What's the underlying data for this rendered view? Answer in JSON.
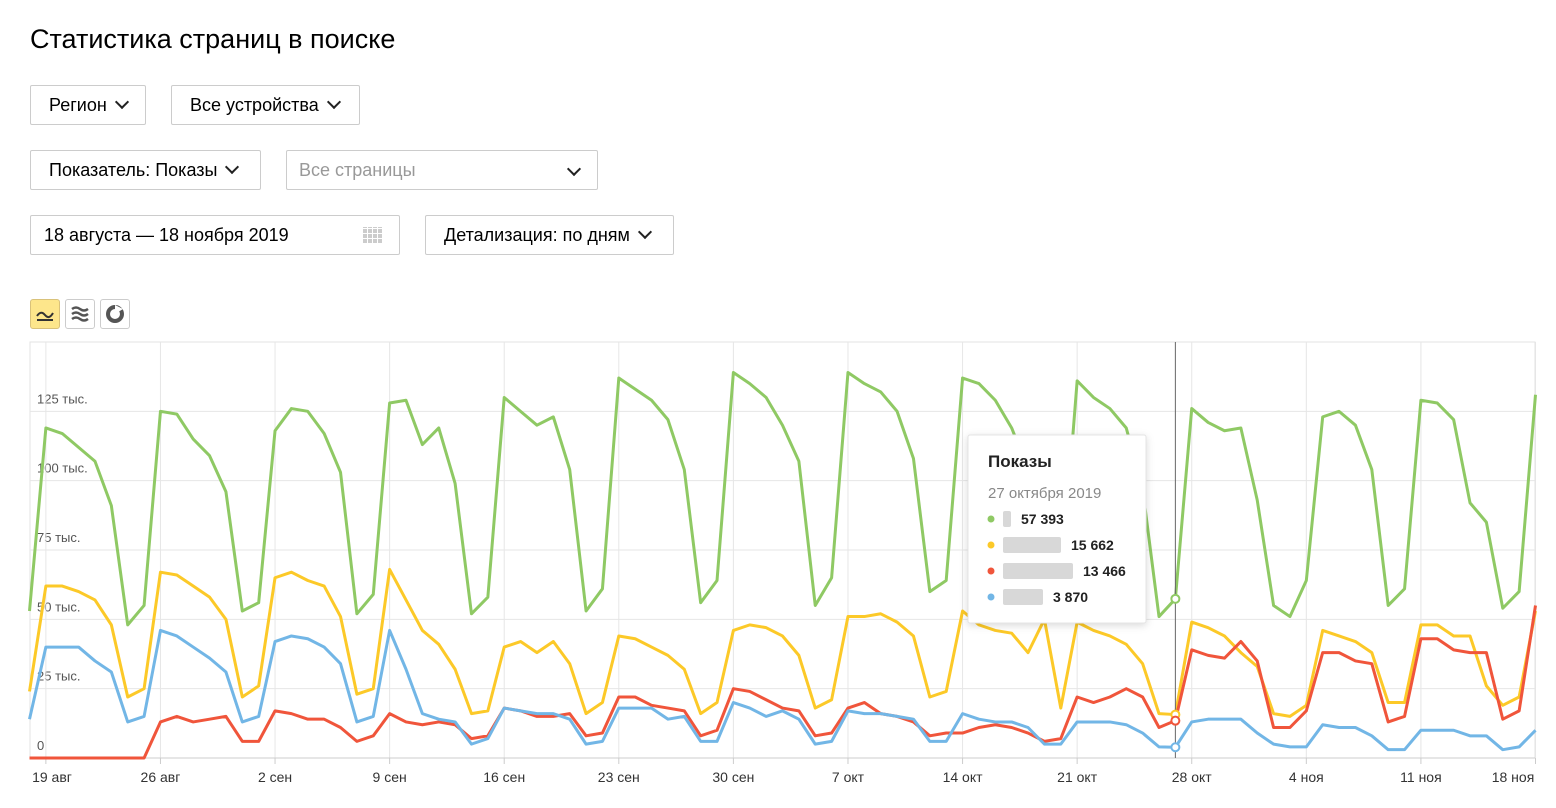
{
  "header": {
    "title": "Статистика страниц в поиске"
  },
  "controls": {
    "region": "Регион",
    "devices": "Все устройства",
    "metric": "Показатель: Показы",
    "pages": "Все страницы",
    "date_range": "18 августа — 18 ноября 2019",
    "detail": "Детализация: по дням"
  },
  "chart_data": {
    "type": "line",
    "categories": [
      null,
      "19 авг",
      null,
      null,
      null,
      null,
      null,
      null,
      "26 авг",
      null,
      null,
      null,
      null,
      null,
      null,
      "2 сен",
      null,
      null,
      null,
      null,
      null,
      null,
      "9 сен",
      null,
      null,
      null,
      null,
      null,
      null,
      "16 сен",
      null,
      null,
      null,
      null,
      null,
      null,
      "23 сен",
      null,
      null,
      null,
      null,
      null,
      null,
      "30 сен",
      null,
      null,
      null,
      null,
      null,
      null,
      "7 окт",
      null,
      null,
      null,
      null,
      null,
      null,
      "14 окт",
      null,
      null,
      null,
      null,
      null,
      null,
      "21 окт",
      null,
      null,
      null,
      null,
      null,
      null,
      "28 окт",
      null,
      null,
      null,
      null,
      null,
      null,
      "4 ноя",
      null,
      null,
      null,
      null,
      null,
      null,
      "11 ноя",
      null,
      null,
      null,
      null,
      null,
      null,
      "18 ноя"
    ],
    "ylim": [
      0,
      150000
    ],
    "yticks": [
      0,
      {
        "value": 25000,
        "label": "25 тыс."
      },
      {
        "value": 50000,
        "label": "50 тыс."
      },
      {
        "value": 75000,
        "label": "75 тыс."
      },
      {
        "value": 100000,
        "label": "100 тыс."
      },
      {
        "value": 125000,
        "label": "125 тыс."
      }
    ],
    "grid": true,
    "tooltip": {
      "title": "Показы",
      "date": "27 октября 2019"
    },
    "series": [
      {
        "color": "#8fc964",
        "values": [
          53000,
          119000,
          117000,
          112000,
          107000,
          91000,
          48000,
          55000,
          125000,
          124000,
          115000,
          109000,
          96000,
          53000,
          56000,
          118000,
          126000,
          125000,
          117000,
          103000,
          52000,
          59000,
          128000,
          129000,
          113000,
          119000,
          99000,
          52000,
          58000,
          130000,
          125000,
          120000,
          123000,
          104000,
          53000,
          61000,
          137000,
          133000,
          129000,
          122000,
          104000,
          56000,
          64000,
          139000,
          135000,
          130000,
          120000,
          107000,
          55000,
          65000,
          139000,
          135000,
          132000,
          125000,
          108000,
          60000,
          64000,
          137000,
          135000,
          129000,
          119000,
          104000,
          57000,
          61000,
          136000,
          130000,
          126000,
          119000,
          97000,
          51000,
          57393,
          126000,
          121000,
          118000,
          119000,
          93000,
          55000,
          51000,
          64000,
          123000,
          125000,
          120000,
          104000,
          55000,
          61000,
          129000,
          128000,
          122000,
          92000,
          85000,
          54000,
          60000,
          131000
        ],
        "value_labels": [
          null,
          null,
          null,
          null,
          null,
          null,
          null,
          null,
          null,
          null,
          null,
          null,
          null,
          null,
          null,
          null,
          null,
          null,
          null,
          null,
          null,
          null,
          null,
          null,
          null,
          null,
          null,
          null,
          null,
          null,
          null,
          null,
          null,
          null,
          null,
          null,
          null,
          null,
          null,
          null,
          null,
          null,
          null,
          null,
          null,
          null,
          null,
          null,
          null,
          null,
          null,
          null,
          null,
          null,
          null,
          null,
          null,
          null,
          null,
          null,
          null,
          null,
          null,
          null,
          null,
          null,
          null,
          null,
          null,
          null,
          "57 393",
          null,
          null,
          null,
          null,
          null,
          null,
          null,
          null,
          null,
          null,
          null,
          null,
          null,
          null,
          null,
          null,
          null,
          null,
          null,
          null,
          null,
          null
        ]
      },
      {
        "color": "#fcc928",
        "values": [
          24000,
          62000,
          62000,
          60000,
          57000,
          48000,
          22000,
          25000,
          67000,
          66000,
          62000,
          58000,
          50000,
          22000,
          26000,
          65000,
          67000,
          64000,
          62000,
          51000,
          23000,
          25000,
          68000,
          57000,
          46000,
          41000,
          32000,
          16000,
          17000,
          40000,
          42000,
          38000,
          42000,
          34000,
          16000,
          20000,
          44000,
          43000,
          40000,
          37000,
          32000,
          16000,
          20000,
          46000,
          48000,
          47000,
          44000,
          37000,
          18000,
          21000,
          51000,
          51000,
          52000,
          49000,
          44000,
          22000,
          24000,
          53000,
          48000,
          46000,
          45000,
          38000,
          50000,
          18000,
          49000,
          46000,
          44000,
          41000,
          34000,
          16000,
          15662,
          49000,
          47000,
          44000,
          38000,
          33000,
          16000,
          15000,
          19000,
          46000,
          44000,
          42000,
          38000,
          20000,
          20000,
          48000,
          48000,
          44000,
          44000,
          26000,
          19000,
          22000,
          53000
        ],
        "value_labels": [
          null,
          null,
          null,
          null,
          null,
          null,
          null,
          null,
          null,
          null,
          null,
          null,
          null,
          null,
          null,
          null,
          null,
          null,
          null,
          null,
          null,
          null,
          null,
          null,
          null,
          null,
          null,
          null,
          null,
          null,
          null,
          null,
          null,
          null,
          null,
          null,
          null,
          null,
          null,
          null,
          null,
          null,
          null,
          null,
          null,
          null,
          null,
          null,
          null,
          null,
          null,
          null,
          null,
          null,
          null,
          null,
          null,
          null,
          null,
          null,
          null,
          null,
          null,
          null,
          null,
          null,
          null,
          null,
          null,
          null,
          "15 662",
          null,
          null,
          null,
          null,
          null,
          null,
          null,
          null,
          null,
          null,
          null,
          null,
          null,
          null,
          null,
          null,
          null,
          null,
          null,
          null,
          null,
          null
        ]
      },
      {
        "color": "#f0553b",
        "values": [
          0,
          0,
          0,
          0,
          0,
          0,
          0,
          0,
          13000,
          15000,
          13000,
          14000,
          15000,
          6000,
          6000,
          17000,
          16000,
          14000,
          14000,
          11000,
          6000,
          8000,
          16000,
          13000,
          12000,
          13000,
          12000,
          7000,
          8000,
          18000,
          17000,
          15000,
          15000,
          16000,
          8000,
          9000,
          22000,
          22000,
          19000,
          18000,
          17000,
          8000,
          10000,
          25000,
          24000,
          21000,
          18000,
          17000,
          8000,
          9000,
          18000,
          20000,
          16000,
          15000,
          13000,
          8000,
          9000,
          9000,
          11000,
          12000,
          11000,
          9000,
          6000,
          7000,
          22000,
          20000,
          22000,
          25000,
          22000,
          11000,
          13466,
          39000,
          37000,
          36000,
          42000,
          35000,
          11000,
          11000,
          17000,
          38000,
          38000,
          35000,
          34000,
          13000,
          15000,
          43000,
          43000,
          39000,
          38000,
          38000,
          14000,
          17000,
          55000
        ],
        "value_labels": [
          null,
          null,
          null,
          null,
          null,
          null,
          null,
          null,
          null,
          null,
          null,
          null,
          null,
          null,
          null,
          null,
          null,
          null,
          null,
          null,
          null,
          null,
          null,
          null,
          null,
          null,
          null,
          null,
          null,
          null,
          null,
          null,
          null,
          null,
          null,
          null,
          null,
          null,
          null,
          null,
          null,
          null,
          null,
          null,
          null,
          null,
          null,
          null,
          null,
          null,
          null,
          null,
          null,
          null,
          null,
          null,
          null,
          null,
          null,
          null,
          null,
          null,
          null,
          null,
          null,
          null,
          null,
          null,
          null,
          null,
          "13 466",
          null,
          null,
          null,
          null,
          null,
          null,
          null,
          null,
          null,
          null,
          null,
          null,
          null,
          null,
          null,
          null,
          null,
          null,
          null,
          null,
          null,
          null
        ]
      },
      {
        "color": "#72b6e6",
        "values": [
          14000,
          40000,
          40000,
          40000,
          35000,
          31000,
          13000,
          15000,
          46000,
          44000,
          40000,
          36000,
          31000,
          13000,
          15000,
          42000,
          44000,
          43000,
          40000,
          34000,
          13000,
          15000,
          46000,
          32000,
          16000,
          14000,
          13000,
          5000,
          7000,
          18000,
          17000,
          16000,
          16000,
          14000,
          5000,
          6000,
          18000,
          18000,
          18000,
          14000,
          15000,
          6000,
          6000,
          20000,
          18000,
          15000,
          17000,
          14000,
          5000,
          6000,
          17000,
          16000,
          16000,
          15000,
          14000,
          6000,
          6000,
          16000,
          14000,
          13000,
          13000,
          11000,
          5000,
          5000,
          13000,
          13000,
          13000,
          12000,
          9000,
          4000,
          3870,
          13000,
          14000,
          14000,
          14000,
          9000,
          5000,
          4000,
          4000,
          12000,
          11000,
          11000,
          8000,
          3000,
          3000,
          10000,
          10000,
          10000,
          8000,
          8000,
          3000,
          4000,
          10000
        ],
        "value_labels": [
          null,
          null,
          null,
          null,
          null,
          null,
          null,
          null,
          null,
          null,
          null,
          null,
          null,
          null,
          null,
          null,
          null,
          null,
          null,
          null,
          null,
          null,
          null,
          null,
          null,
          null,
          null,
          null,
          null,
          null,
          null,
          null,
          null,
          null,
          null,
          null,
          null,
          null,
          null,
          null,
          null,
          null,
          null,
          null,
          null,
          null,
          null,
          null,
          null,
          null,
          null,
          null,
          null,
          null,
          null,
          null,
          null,
          null,
          null,
          null,
          null,
          null,
          null,
          null,
          null,
          null,
          null,
          null,
          null,
          null,
          "3 870",
          null,
          null,
          null,
          null,
          null,
          null,
          null,
          null,
          null,
          null,
          null,
          null,
          null,
          null,
          null,
          null,
          null,
          null,
          null,
          null,
          null,
          null
        ]
      }
    ]
  }
}
